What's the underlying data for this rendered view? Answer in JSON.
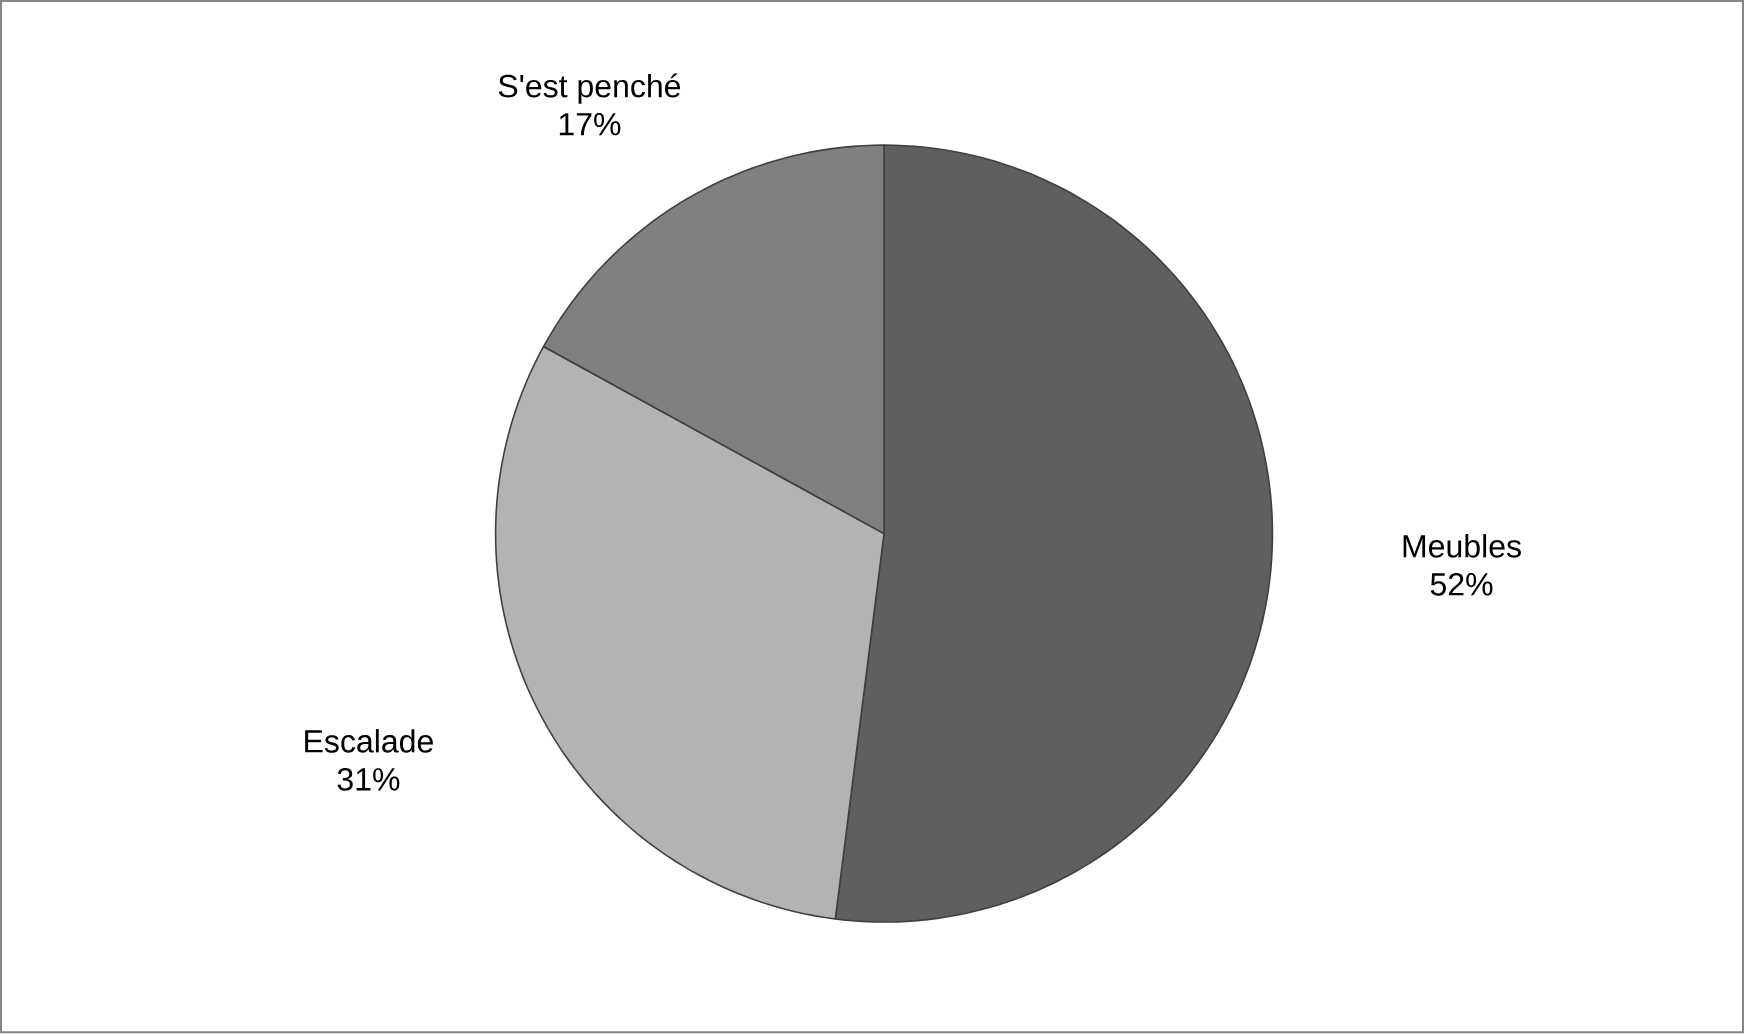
{
  "chart_data": {
    "type": "pie",
    "categories": [
      "Meubles",
      "Escalade",
      "S'est penché"
    ],
    "values": [
      52,
      31,
      17
    ],
    "colors": [
      "#5f5f5f",
      "#b3b3b3",
      "#808080"
    ],
    "value_labels": [
      "52%",
      "31%",
      "17%"
    ]
  }
}
